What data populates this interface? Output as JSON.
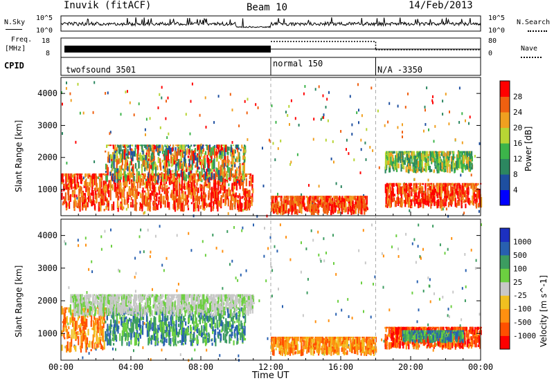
{
  "header": {
    "station": "Inuvik (fitACF)",
    "beam": "Beam 10",
    "date": "14/Feb/2013"
  },
  "sky_panel": {
    "left_label": "N.Sky",
    "right_label": "N.Search",
    "y_ticks": [
      "10^5",
      "10^0"
    ]
  },
  "freq_panel": {
    "left_label_top": "Freq.",
    "left_label_unit": "[MHz]",
    "y_ticks": [
      "18",
      "8"
    ],
    "right_label": "Nave",
    "right_ticks": [
      "80",
      "0"
    ]
  },
  "cpid": {
    "label": "CPID",
    "segments": [
      {
        "name": "twofsound 3501",
        "start_hour": 0,
        "end_hour": 12
      },
      {
        "name": "normal 150",
        "start_hour": 12,
        "end_hour": 18
      },
      {
        "name": "N/A -3350",
        "start_hour": 18,
        "end_hour": 24
      }
    ]
  },
  "chart_data": [
    {
      "type": "heatmap",
      "title": "",
      "xlabel": "Time UT",
      "ylabel": "Slant Range [km]",
      "xlim": [
        0,
        24
      ],
      "ylim": [
        180,
        4500
      ],
      "y_ticks": [
        1000,
        2000,
        3000,
        4000
      ],
      "colorbar": {
        "label": "Power [dB]",
        "ticks": [
          "28",
          "24",
          "20",
          "16",
          "12",
          "8",
          "4"
        ],
        "colors": [
          "#0000ff",
          "#1e4fa0",
          "#2c8760",
          "#3cb44a",
          "#b7d534",
          "#f0a020",
          "#f06010",
          "#ff0000"
        ]
      },
      "regions": [
        {
          "t": [
            0.0,
            11.0
          ],
          "range_km": [
            300,
            1500
          ],
          "level": "high (20-28 dB)"
        },
        {
          "t": [
            2.5,
            10.5
          ],
          "range_km": [
            1200,
            2400
          ],
          "level": "mixed (8-28 dB)"
        },
        {
          "t": [
            12.0,
            17.5
          ],
          "range_km": [
            200,
            800
          ],
          "level": "high (20-28 dB)"
        },
        {
          "t": [
            18.5,
            24.0
          ],
          "range_km": [
            400,
            1200
          ],
          "level": "high (20-28 dB)"
        },
        {
          "t": [
            18.5,
            23.5
          ],
          "range_km": [
            1500,
            2200
          ],
          "level": "medium (12-20 dB)"
        }
      ]
    },
    {
      "type": "heatmap",
      "title": "",
      "xlabel": "Time UT",
      "ylabel": "Slant Range [km]",
      "xlim": [
        0,
        24
      ],
      "ylim": [
        180,
        4500
      ],
      "y_ticks": [
        1000,
        2000,
        3000,
        4000
      ],
      "x_tick_labels": [
        "00:00",
        "04:00",
        "08:00",
        "12:00",
        "16:00",
        "20:00",
        "00:00"
      ],
      "colorbar": {
        "label": "Velocity [m s^-1]",
        "ticks": [
          "1000",
          "500",
          "100",
          "25",
          "-25",
          "-100",
          "-500",
          "-1000"
        ],
        "colors": [
          "#ff0000",
          "#ff5000",
          "#ff9010",
          "#f0c020",
          "#c8c8c8",
          "#6ccf40",
          "#3c9c60",
          "#2860b0",
          "#1c30c0"
        ]
      },
      "regions": [
        {
          "t": [
            0.0,
            2.5
          ],
          "range_km": [
            400,
            1800
          ],
          "level": "-100 to -500 m/s"
        },
        {
          "t": [
            2.5,
            10.5
          ],
          "range_km": [
            600,
            1800
          ],
          "level": "100 to 500 m/s"
        },
        {
          "t": [
            0.5,
            11.0
          ],
          "range_km": [
            1500,
            2200
          ],
          "level": "-25 to 25 m/s"
        },
        {
          "t": [
            12.0,
            18.0
          ],
          "range_km": [
            300,
            900
          ],
          "level": "-100 to -500 m/s"
        },
        {
          "t": [
            18.5,
            24.0
          ],
          "range_km": [
            500,
            1200
          ],
          "level": "-100 to -1000 m/s"
        },
        {
          "t": [
            19.5,
            23.0
          ],
          "range_km": [
            700,
            1100
          ],
          "level": "100 to 500 m/s"
        }
      ]
    }
  ]
}
